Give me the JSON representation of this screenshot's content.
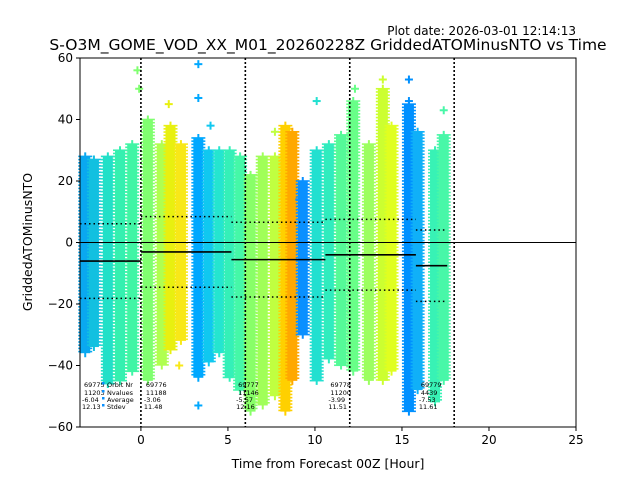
{
  "chart_data": {
    "type": "scatter",
    "title": "S-O3M_GOME_VOD_XX_M01_20260228Z GriddedATOMinusNTO vs Time",
    "plot_date": "Plot date: 2026-03-01 12:14:13",
    "xlabel": "Time from Forecast 00Z [Hour]",
    "ylabel": "GriddedATOMinusNTO",
    "xlim": [
      -3.5,
      25
    ],
    "ylim": [
      -60,
      60
    ],
    "xticks": [
      0,
      5,
      10,
      15,
      20,
      25
    ],
    "yticks": [
      -60,
      -40,
      -20,
      0,
      20,
      40,
      60
    ],
    "zero_line": 0,
    "forecast_boundaries": [
      0,
      6,
      12,
      18
    ],
    "stats_row_labels": [
      "Orbit Nr",
      "Nvalues",
      "Average",
      "Stdev"
    ],
    "stat_groups": [
      {
        "xpos": -5,
        "orbit": "69775",
        "nvalues": "11203",
        "average": "-6.04",
        "stdev": "12.13",
        "mean": -6.04,
        "sd": 12.13,
        "x_start": -3.5,
        "x_end": 0
      },
      {
        "xpos": 0,
        "orbit": "69776",
        "nvalues": "11188",
        "average": "-3.06",
        "stdev": "11.48",
        "mean": -3.06,
        "sd": 11.48,
        "x_start": 0,
        "x_end": 5.2
      },
      {
        "xpos": 5.3,
        "orbit": "69777",
        "nvalues": "11146",
        "average": "-5.57",
        "stdev": "12.16",
        "mean": -5.57,
        "sd": 12.16,
        "x_start": 5.2,
        "x_end": 10.6
      },
      {
        "xpos": 10.6,
        "orbit": "69778",
        "nvalues": "11200",
        "average": "-3.99",
        "stdev": "11.51",
        "mean": -3.99,
        "sd": 11.51,
        "x_start": 10.6,
        "x_end": 15.8
      },
      {
        "xpos": 15.8,
        "orbit": "69779",
        "nvalues": "4439",
        "average": "-7.53",
        "stdev": "11.61",
        "mean": -7.53,
        "sd": 11.61,
        "x_start": 15.8,
        "x_end": 17.6
      }
    ],
    "bands": [
      {
        "x": -3.2,
        "lo": -36,
        "hi": 28,
        "color": "#0aa8f0"
      },
      {
        "x": -2.7,
        "lo": -34,
        "hi": 27,
        "color": "#12c0e0"
      },
      {
        "x": -1.9,
        "lo": -46,
        "hi": 28,
        "color": "#22e0c8"
      },
      {
        "x": -1.2,
        "lo": -45,
        "hi": 30,
        "color": "#35f0b0"
      },
      {
        "x": -0.5,
        "lo": -42,
        "hi": 32,
        "color": "#40f5a5"
      },
      {
        "x": 0.4,
        "lo": -45,
        "hi": 40,
        "color": "#80ff70"
      },
      {
        "x": 1.2,
        "lo": -40,
        "hi": 32,
        "color": "#b0ff50"
      },
      {
        "x": 1.7,
        "lo": -35,
        "hi": 38,
        "color": "#e8f010"
      },
      {
        "x": 2.3,
        "lo": -32,
        "hi": 32,
        "color": "#f8e818"
      },
      {
        "x": 3.3,
        "lo": -44,
        "hi": 34,
        "color": "#00a8ff"
      },
      {
        "x": 3.9,
        "lo": -39,
        "hi": 30,
        "color": "#10c8f0"
      },
      {
        "x": 4.5,
        "lo": -36,
        "hi": 30,
        "color": "#25e5d0"
      },
      {
        "x": 5.1,
        "lo": -44,
        "hi": 30,
        "color": "#35f0b8"
      },
      {
        "x": 5.7,
        "lo": -48,
        "hi": 28,
        "color": "#45f8a8"
      },
      {
        "x": 6.3,
        "lo": -55,
        "hi": 22,
        "color": "#88ff68"
      },
      {
        "x": 7.0,
        "lo": -53,
        "hi": 28,
        "color": "#a0ff58"
      },
      {
        "x": 7.7,
        "lo": -50,
        "hi": 28,
        "color": "#c0ff40"
      },
      {
        "x": 8.3,
        "lo": -55,
        "hi": 38,
        "color": "#ffd000"
      },
      {
        "x": 8.7,
        "lo": -45,
        "hi": 36,
        "color": "#ffa800"
      },
      {
        "x": 9.3,
        "lo": -30,
        "hi": 20,
        "color": "#0a90ff"
      },
      {
        "x": 10.1,
        "lo": -45,
        "hi": 30,
        "color": "#22e0d0"
      },
      {
        "x": 10.8,
        "lo": -38,
        "hi": 32,
        "color": "#30ecbe"
      },
      {
        "x": 11.5,
        "lo": -40,
        "hi": 35,
        "color": "#55fa98"
      },
      {
        "x": 12.2,
        "lo": -42,
        "hi": 46,
        "color": "#68ff88"
      },
      {
        "x": 13.1,
        "lo": -45,
        "hi": 32,
        "color": "#9cff60"
      },
      {
        "x": 13.9,
        "lo": -45,
        "hi": 50,
        "color": "#ccff30"
      },
      {
        "x": 14.4,
        "lo": -42,
        "hi": 38,
        "color": "#e0ff20"
      },
      {
        "x": 15.4,
        "lo": -55,
        "hi": 45,
        "color": "#0090ff"
      },
      {
        "x": 15.9,
        "lo": -48,
        "hi": 36,
        "color": "#10b0f8"
      },
      {
        "x": 16.9,
        "lo": -52,
        "hi": 30,
        "color": "#38f2b5"
      },
      {
        "x": 17.4,
        "lo": -45,
        "hi": 35,
        "color": "#48f7a8"
      }
    ],
    "outliers": [
      {
        "x": 3.3,
        "y": 58,
        "color": "#00a8ff"
      },
      {
        "x": 3.3,
        "y": 47,
        "color": "#00a8ff"
      },
      {
        "x": 15.4,
        "y": 53,
        "color": "#0090ff"
      },
      {
        "x": 15.4,
        "y": 46,
        "color": "#0090ff"
      },
      {
        "x": -0.2,
        "y": 56,
        "color": "#80ff70"
      },
      {
        "x": -0.1,
        "y": 50,
        "color": "#80ff70"
      },
      {
        "x": 10.1,
        "y": 46,
        "color": "#22e0d0"
      },
      {
        "x": 13.9,
        "y": 53,
        "color": "#ccff30"
      },
      {
        "x": 1.6,
        "y": 45,
        "color": "#e8f010"
      },
      {
        "x": 17.4,
        "y": 43,
        "color": "#48f7a8"
      },
      {
        "x": 3.3,
        "y": -53,
        "color": "#00a8ff"
      },
      {
        "x": 7.7,
        "y": 36,
        "color": "#c0ff40"
      },
      {
        "x": 9.1,
        "y": 14,
        "color": "#0a90ff"
      },
      {
        "x": 4.0,
        "y": 38,
        "color": "#10c8f0"
      },
      {
        "x": 2.2,
        "y": -40,
        "color": "#f8e818"
      },
      {
        "x": 8.7,
        "y": -33,
        "color": "#ffa800"
      },
      {
        "x": 12.3,
        "y": 50,
        "color": "#68ff88"
      }
    ]
  }
}
